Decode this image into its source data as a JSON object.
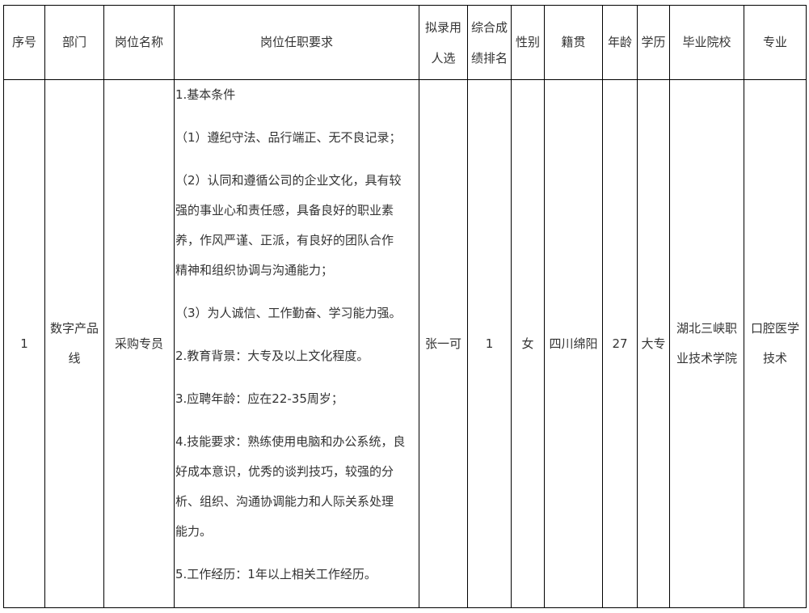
{
  "headers": {
    "index": "序号",
    "department": "部门",
    "position": "岗位名称",
    "requirements": "岗位任职要求",
    "candidate": [
      "拟录用",
      "人选"
    ],
    "ranking": [
      "综合成",
      "绩排名"
    ],
    "gender": "性别",
    "hometown": "籍贯",
    "age": "年龄",
    "education": "学历",
    "school": "毕业院校",
    "major": "专业"
  },
  "rows": [
    {
      "index": "1",
      "department": [
        "数字产品",
        "线"
      ],
      "position": "采购专员",
      "requirements": [
        [
          "1.基本条件"
        ],
        [
          "（1）遵纪守法、品行端正、无不良记录；"
        ],
        [
          "（2）认同和遵循公司的企业文化，具有较",
          "强的事业心和责任感，具备良好的职业素",
          "养，作风严谨、正派，有良好的团队合作",
          "精神和组织协调与沟通能力；"
        ],
        [
          "（3）为人诚信、工作勤奋、学习能力强。"
        ],
        [
          "2.教育背景：大专及以上文化程度。"
        ],
        [
          "3.应聘年龄：应在22-35周岁；"
        ],
        [
          "4.技能要求：熟练使用电脑和办公系统，良",
          "好成本意识，优秀的谈判技巧，较强的分",
          "析、组织、沟通协调能力和人际关系处理",
          "能力。"
        ],
        [
          "5.工作经历：1年以上相关工作经历。"
        ]
      ],
      "candidate": "张一可",
      "ranking": "1",
      "gender": "女",
      "hometown": "四川绵阳",
      "age": "27",
      "education": "大专",
      "school": [
        "湖北三峡职",
        "业技术学院"
      ],
      "major": [
        "口腔医学",
        "技术"
      ]
    }
  ]
}
